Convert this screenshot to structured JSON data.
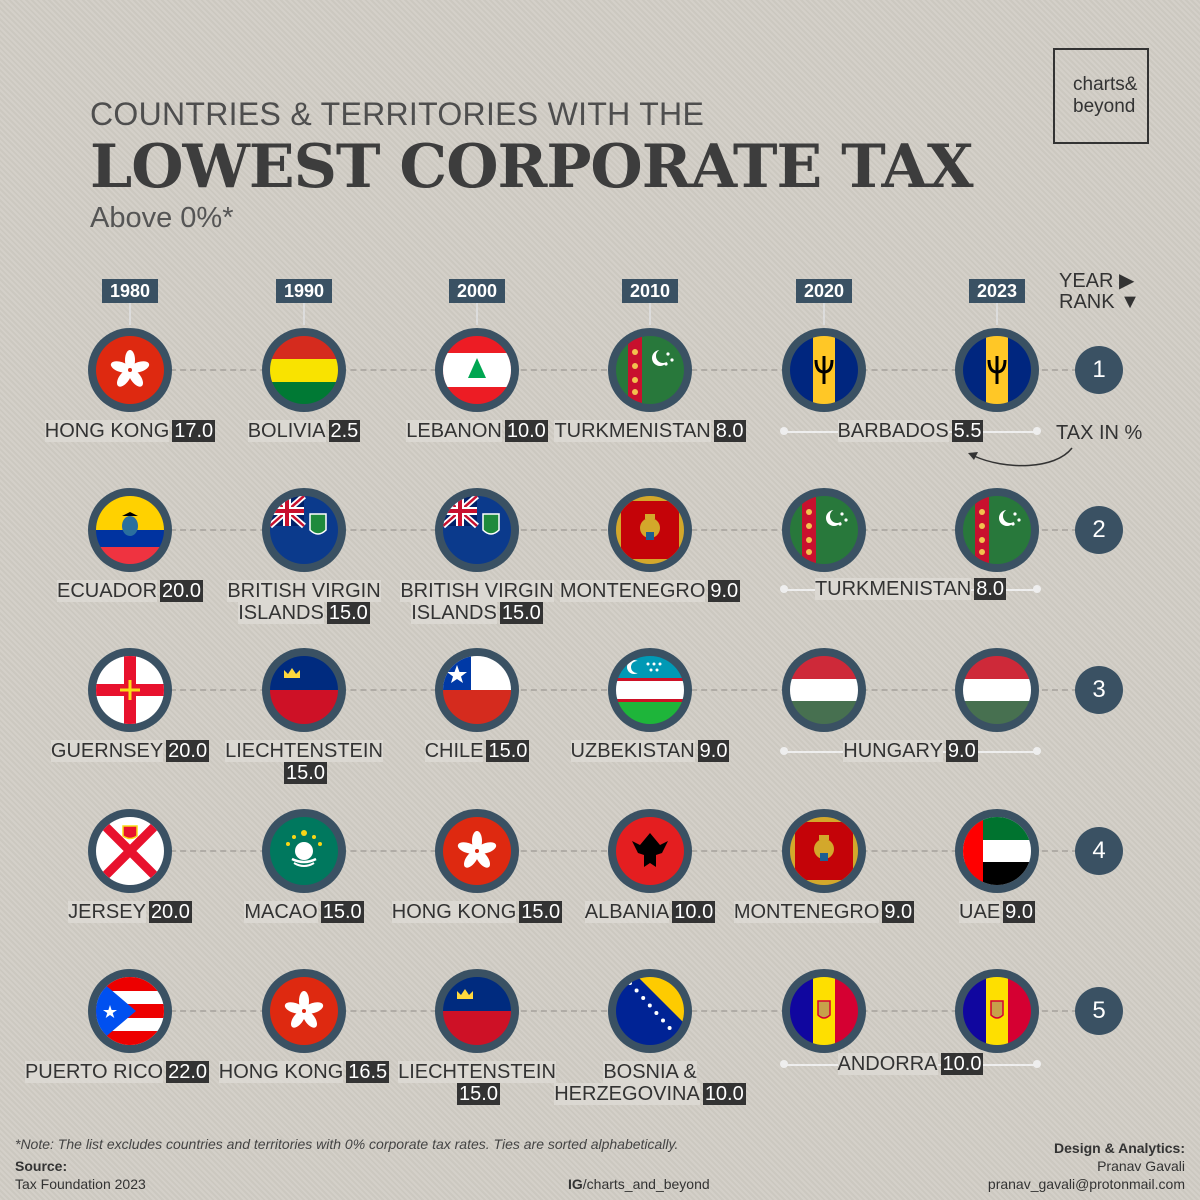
{
  "header": {
    "pretitle": "COUNTRIES & TERRITORIES WITH THE",
    "title": "LOWEST CORPORATE TAX",
    "subtitle": "Above 0%*",
    "logo_line1": "charts&",
    "logo_line2": "beyond"
  },
  "legend": {
    "year_label": "YEAR ▶",
    "rank_label": "RANK ▼",
    "tax_label": "TAX IN %"
  },
  "chart_data": {
    "type": "table",
    "title": "LOWEST CORPORATE TAX",
    "years": [
      "1980",
      "1990",
      "2000",
      "2010",
      "2020",
      "2023"
    ],
    "ranks": [
      "1",
      "2",
      "3",
      "4",
      "5"
    ],
    "cells": [
      [
        {
          "country": "HONG KONG",
          "tax": "17.0",
          "flag": "hong-kong"
        },
        {
          "country": "BOLIVIA",
          "tax": "2.5",
          "flag": "bolivia"
        },
        {
          "country": "LEBANON",
          "tax": "10.0",
          "flag": "lebanon"
        },
        {
          "country": "TURKMENISTAN",
          "tax": "8.0",
          "flag": "turkmenistan"
        },
        {
          "country": "BARBADOS",
          "tax": "5.5",
          "flag": "barbados",
          "span": 2
        }
      ],
      [
        {
          "country": "ECUADOR",
          "tax": "20.0",
          "flag": "ecuador"
        },
        {
          "country": "BRITISH VIRGIN",
          "country2": "ISLANDS",
          "tax": "15.0",
          "flag": "bvi"
        },
        {
          "country": "BRITISH VIRGIN",
          "country2": "ISLANDS",
          "tax": "15.0",
          "flag": "bvi"
        },
        {
          "country": "MONTENEGRO",
          "tax": "9.0",
          "flag": "montenegro"
        },
        {
          "country": "TURKMENISTAN",
          "tax": "8.0",
          "flag": "turkmenistan",
          "span": 2
        }
      ],
      [
        {
          "country": "GUERNSEY",
          "tax": "20.0",
          "flag": "guernsey"
        },
        {
          "country": "LIECHTENSTEIN",
          "tax": "15.0",
          "flag": "liechtenstein",
          "wrap": true
        },
        {
          "country": "CHILE",
          "tax": "15.0",
          "flag": "chile"
        },
        {
          "country": "UZBEKISTAN",
          "tax": "9.0",
          "flag": "uzbekistan"
        },
        {
          "country": "HUNGARY",
          "tax": "9.0",
          "flag": "hungary",
          "span": 2
        }
      ],
      [
        {
          "country": "JERSEY",
          "tax": "20.0",
          "flag": "jersey"
        },
        {
          "country": "MACAO",
          "tax": "15.0",
          "flag": "macao"
        },
        {
          "country": "HONG KONG",
          "tax": "15.0",
          "flag": "hong-kong"
        },
        {
          "country": "ALBANIA",
          "tax": "10.0",
          "flag": "albania"
        },
        {
          "country": "MONTENEGRO",
          "tax": "9.0",
          "flag": "montenegro"
        },
        {
          "country": "UAE",
          "tax": "9.0",
          "flag": "uae"
        }
      ],
      [
        {
          "country": "PUERTO RICO",
          "tax": "22.0",
          "flag": "puerto-rico"
        },
        {
          "country": "HONG KONG",
          "tax": "16.5",
          "flag": "hong-kong"
        },
        {
          "country": "LIECHTENSTEIN",
          "tax": "15.0",
          "flag": "liechtenstein",
          "wrap": true
        },
        {
          "country": "BOSNIA &",
          "country2": "HERZEGOVINA",
          "tax": "10.0",
          "flag": "bosnia"
        },
        {
          "country": "ANDORRA",
          "tax": "10.0",
          "flag": "andorra",
          "span": 2
        }
      ]
    ]
  },
  "footer": {
    "note": "*Note: The list excludes countries and territories with 0% corporate tax rates. Ties are sorted alphabetically.",
    "source_label": "Source:",
    "source_value": "Tax Foundation 2023",
    "ig_prefix": "IG",
    "ig_handle": "/charts_and_beyond",
    "design_label": "Design & Analytics:",
    "design_name": "Pranav Gavali",
    "design_email": "pranav_gavali@protonmail.com"
  }
}
